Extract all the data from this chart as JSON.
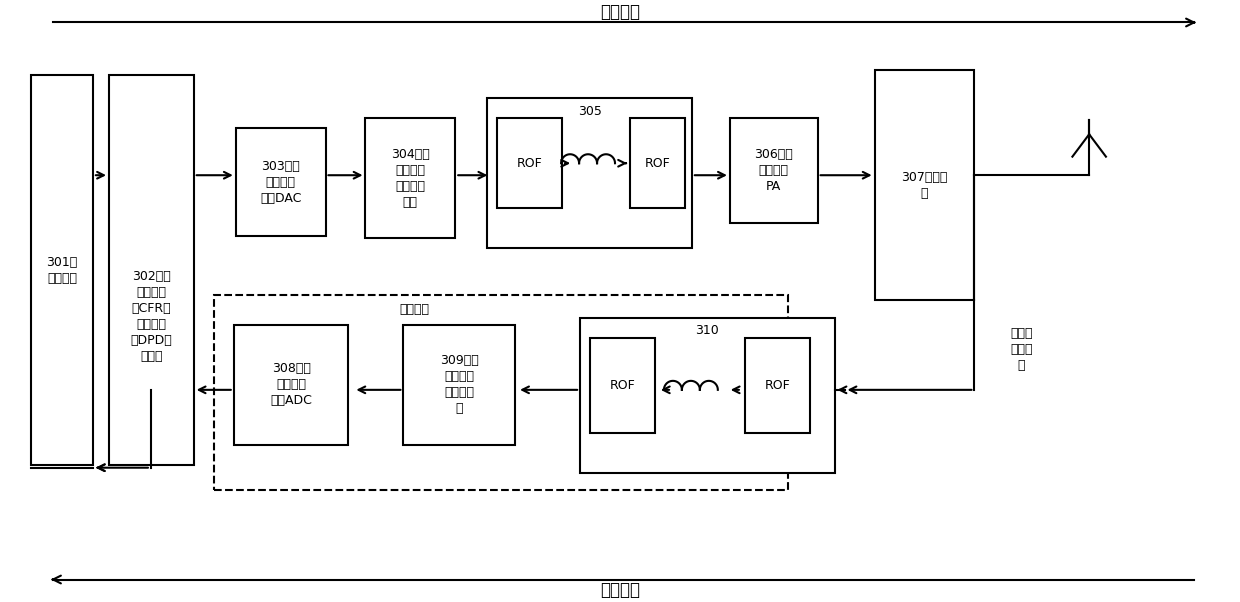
{
  "title_downlink": "下行链路",
  "title_uplink": "上行链路",
  "label_301": "301、\n基带信号",
  "label_302": "302、波\n峰因子降\n低CFR和\n数字预失\n真DPD处\n理单元",
  "label_303": "303、数\n字模拟转\n化器DAC",
  "label_304": "304、上\n变频和小\n信号放大\n单元",
  "label_305": "305",
  "label_306": "306、功\n率放大器\nPA",
  "label_307": "307、滤波\n器",
  "label_308": "308、模\n拟数字转\n化器ADC",
  "label_309": "309、下\n变频和反\n馈电路单\n元",
  "label_310": "310",
  "label_feedback_path": "反馈链路",
  "label_feedback_signal": "反馈和\n接收信\n号",
  "label_ROF": "ROF",
  "bg_color": "#ffffff",
  "font_size": 9
}
